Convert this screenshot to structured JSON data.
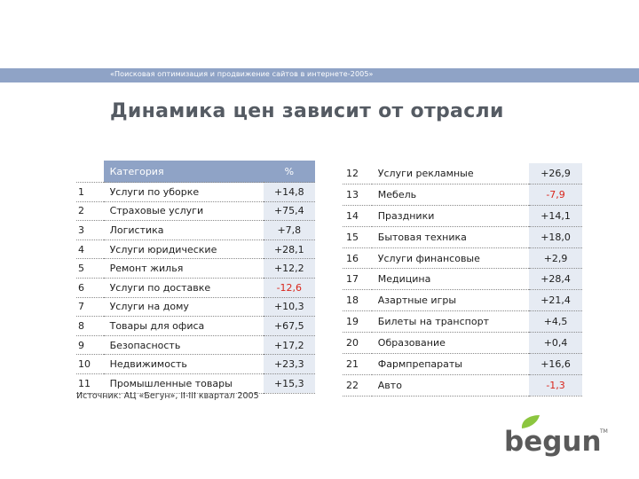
{
  "header": {
    "subtitle": "«Поисковая оптимизация и продвижение сайтов в интернете-2005»",
    "title": "Динамика цен зависит от отрасли"
  },
  "table": {
    "column_headers": [
      "Категория",
      "%"
    ],
    "rows_left": [
      {
        "num": "1",
        "category": "Услуги по уборке",
        "value": "+14,8"
      },
      {
        "num": "2",
        "category": "Страховые услуги",
        "value": "+75,4"
      },
      {
        "num": "3",
        "category": "Логистика",
        "value": "+7,8"
      },
      {
        "num": "4",
        "category": "Услуги юридические",
        "value": "+28,1"
      },
      {
        "num": "5",
        "category": "Ремонт жилья",
        "value": "+12,2"
      },
      {
        "num": "6",
        "category": "Услуги по доставке",
        "value": "-12,6"
      },
      {
        "num": "7",
        "category": "Услуги на дому",
        "value": "+10,3"
      },
      {
        "num": "8",
        "category": "Товары для офиса",
        "value": "+67,5"
      },
      {
        "num": "9",
        "category": "Безопасность",
        "value": "+17,2"
      },
      {
        "num": "10",
        "category": "Недвижимость",
        "value": "+23,3"
      },
      {
        "num": "11",
        "category": "Промышленные товары",
        "value": "+15,3"
      }
    ],
    "rows_right": [
      {
        "num": "12",
        "category": "Услуги рекламные",
        "value": "+26,9"
      },
      {
        "num": "13",
        "category": "Мебель",
        "value": "-7,9"
      },
      {
        "num": "14",
        "category": "Праздники",
        "value": "+14,1"
      },
      {
        "num": "15",
        "category": "Бытовая техника",
        "value": "+18,0"
      },
      {
        "num": "16",
        "category": "Услуги финансовые",
        "value": "+2,9"
      },
      {
        "num": "17",
        "category": "Медицина",
        "value": "+28,4"
      },
      {
        "num": "18",
        "category": "Азартные игры",
        "value": "+21,4"
      },
      {
        "num": "19",
        "category": "Билеты на транспорт",
        "value": "+4,5"
      },
      {
        "num": "20",
        "category": "Образование",
        "value": "+0,4"
      },
      {
        "num": "21",
        "category": "Фармпрепараты",
        "value": "+16,6"
      },
      {
        "num": "22",
        "category": "Авто",
        "value": "-1,3"
      }
    ]
  },
  "source": "Источник: АЦ «Бегун», II-III квартал 2005",
  "logo": {
    "text": "begun",
    "trademark": "TM",
    "icon": "leaf-icon"
  },
  "colors": {
    "header_bar": "#8fa3c6",
    "value_cell_bg": "#e6ebf3",
    "negative": "#d9261c",
    "logo_leaf": "#8cc63f",
    "logo_text": "#5a5a5a"
  }
}
